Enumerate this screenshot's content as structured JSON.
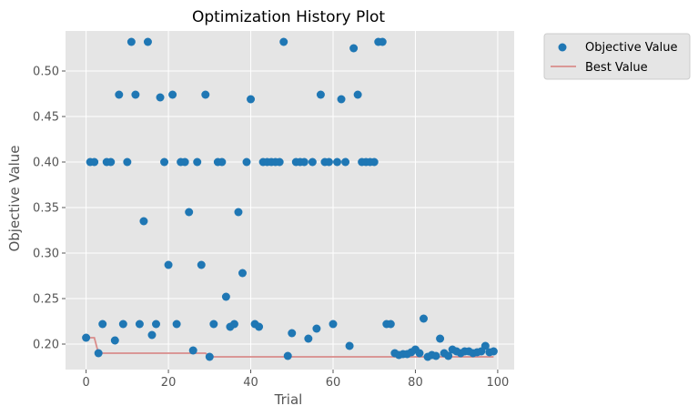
{
  "chart_data": {
    "type": "scatter",
    "title": "Optimization History Plot",
    "xlabel": "Trial",
    "ylabel": "Objective Value",
    "xlim": [
      -5,
      104
    ],
    "ylim": [
      0.172,
      0.544
    ],
    "x_ticks": [
      0,
      20,
      40,
      60,
      80,
      100
    ],
    "y_ticks": [
      0.2,
      0.25,
      0.3,
      0.35,
      0.4,
      0.45,
      0.5
    ],
    "y_tick_labels": [
      "0.20",
      "0.25",
      "0.30",
      "0.35",
      "0.40",
      "0.45",
      "0.50"
    ],
    "grid": true,
    "legend_position": "outside-upper-right",
    "series": [
      {
        "name": "Objective Value",
        "kind": "scatter",
        "color": "#1f77b4",
        "points": [
          [
            0,
            0.207
          ],
          [
            1,
            0.4
          ],
          [
            2,
            0.4
          ],
          [
            3,
            0.19
          ],
          [
            4,
            0.222
          ],
          [
            5,
            0.4
          ],
          [
            6,
            0.4
          ],
          [
            7,
            0.204
          ],
          [
            8,
            0.474
          ],
          [
            9,
            0.222
          ],
          [
            10,
            0.4
          ],
          [
            11,
            0.532
          ],
          [
            12,
            0.474
          ],
          [
            13,
            0.222
          ],
          [
            14,
            0.335
          ],
          [
            15,
            0.532
          ],
          [
            16,
            0.21
          ],
          [
            17,
            0.222
          ],
          [
            18,
            0.471
          ],
          [
            19,
            0.4
          ],
          [
            20,
            0.287
          ],
          [
            21,
            0.474
          ],
          [
            22,
            0.222
          ],
          [
            23,
            0.4
          ],
          [
            24,
            0.4
          ],
          [
            25,
            0.345
          ],
          [
            26,
            0.193
          ],
          [
            27,
            0.4
          ],
          [
            28,
            0.287
          ],
          [
            29,
            0.474
          ],
          [
            30,
            0.186
          ],
          [
            31,
            0.222
          ],
          [
            32,
            0.4
          ],
          [
            33,
            0.4
          ],
          [
            34,
            0.252
          ],
          [
            35,
            0.219
          ],
          [
            36,
            0.222
          ],
          [
            37,
            0.345
          ],
          [
            38,
            0.278
          ],
          [
            39,
            0.4
          ],
          [
            40,
            0.469
          ],
          [
            41,
            0.222
          ],
          [
            42,
            0.219
          ],
          [
            43,
            0.4
          ],
          [
            44,
            0.4
          ],
          [
            45,
            0.4
          ],
          [
            46,
            0.4
          ],
          [
            47,
            0.4
          ],
          [
            48,
            0.532
          ],
          [
            49,
            0.187
          ],
          [
            50,
            0.212
          ],
          [
            51,
            0.4
          ],
          [
            52,
            0.4
          ],
          [
            53,
            0.4
          ],
          [
            54,
            0.206
          ],
          [
            55,
            0.4
          ],
          [
            56,
            0.217
          ],
          [
            57,
            0.474
          ],
          [
            58,
            0.4
          ],
          [
            59,
            0.4
          ],
          [
            60,
            0.222
          ],
          [
            61,
            0.4
          ],
          [
            62,
            0.469
          ],
          [
            63,
            0.4
          ],
          [
            64,
            0.198
          ],
          [
            65,
            0.525
          ],
          [
            66,
            0.474
          ],
          [
            67,
            0.4
          ],
          [
            68,
            0.4
          ],
          [
            69,
            0.4
          ],
          [
            70,
            0.4
          ],
          [
            71,
            0.532
          ],
          [
            72,
            0.532
          ],
          [
            73,
            0.222
          ],
          [
            74,
            0.222
          ],
          [
            75,
            0.19
          ],
          [
            76,
            0.188
          ],
          [
            77,
            0.189
          ],
          [
            78,
            0.189
          ],
          [
            79,
            0.191
          ],
          [
            80,
            0.194
          ],
          [
            81,
            0.19
          ],
          [
            82,
            0.228
          ],
          [
            83,
            0.186
          ],
          [
            84,
            0.188
          ],
          [
            85,
            0.187
          ],
          [
            86,
            0.206
          ],
          [
            87,
            0.19
          ],
          [
            88,
            0.187
          ],
          [
            89,
            0.194
          ],
          [
            90,
            0.192
          ],
          [
            91,
            0.19
          ],
          [
            92,
            0.192
          ],
          [
            93,
            0.192
          ],
          [
            94,
            0.19
          ],
          [
            95,
            0.191
          ],
          [
            96,
            0.192
          ],
          [
            97,
            0.198
          ],
          [
            98,
            0.191
          ],
          [
            99,
            0.192
          ]
        ]
      },
      {
        "name": "Best Value",
        "kind": "step-line",
        "color": "#d98c8a",
        "points": [
          [
            0,
            0.207
          ],
          [
            2,
            0.207
          ],
          [
            3,
            0.19
          ],
          [
            29,
            0.19
          ],
          [
            30,
            0.186
          ],
          [
            99,
            0.186
          ]
        ]
      }
    ]
  }
}
